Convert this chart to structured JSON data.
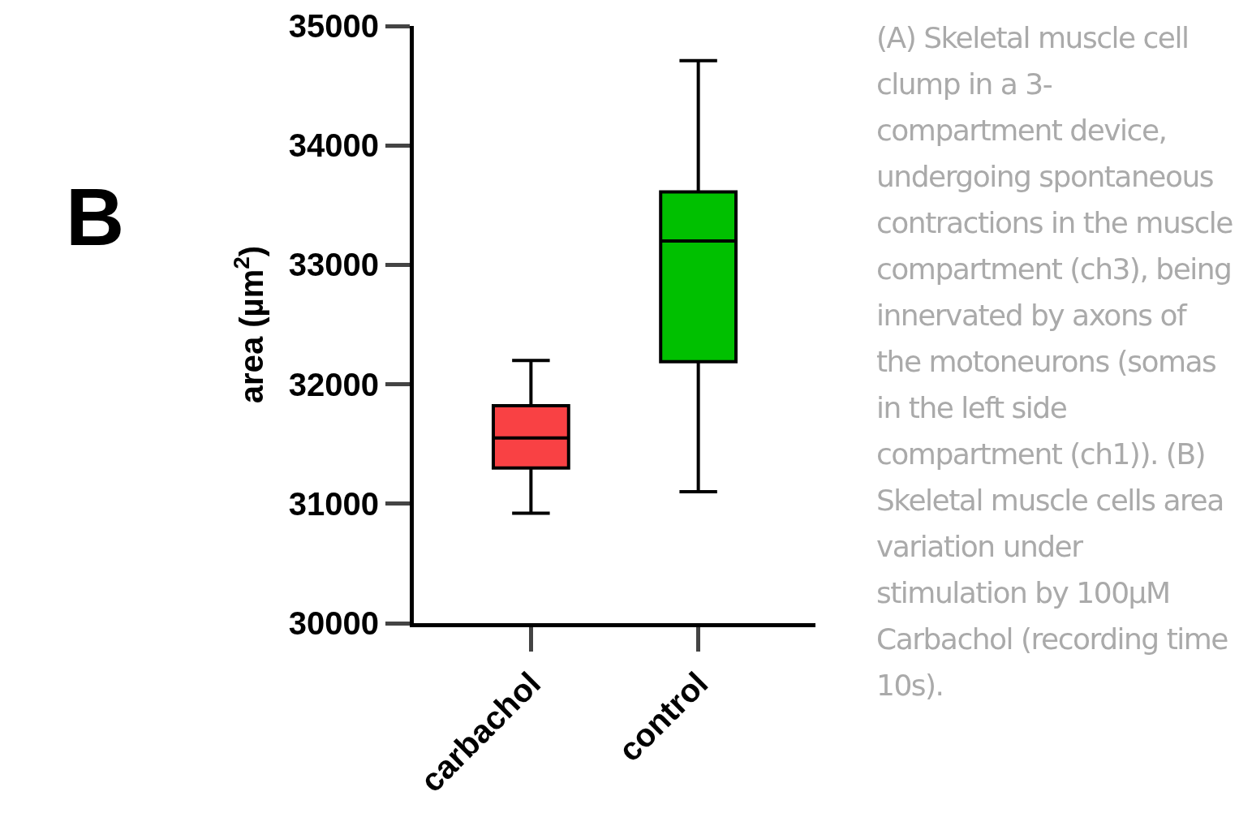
{
  "chart_data": {
    "type": "box",
    "ylabel": "area (µm$^{2}$)",
    "categories": [
      "carbachol",
      "control"
    ],
    "colors": [
      "#f94144",
      "#00c000"
    ],
    "boxes": [
      {
        "low": 30920,
        "q1": 31300,
        "median": 31550,
        "q3": 31820,
        "high": 32200
      },
      {
        "low": 31100,
        "q1": 32190,
        "median": 33200,
        "q3": 33610,
        "high": 34710
      }
    ],
    "ylim": [
      30000,
      35000
    ],
    "yticks": [
      30000,
      31000,
      32000,
      33000,
      34000,
      35000
    ],
    "grid": false,
    "legend": false,
    "annotations": [
      "B",
      "(A) Skeletal muscle cell clump in a 3-compartment device, undergoing spontaneous contractions in the muscle compartment (ch3), being innervated by axons of the motoneurons (somas in the left side compartment (ch1)). (B) Skeletal muscle cells area variation under stimulation by 100µM Carbachol (recording time 10s)."
    ]
  }
}
